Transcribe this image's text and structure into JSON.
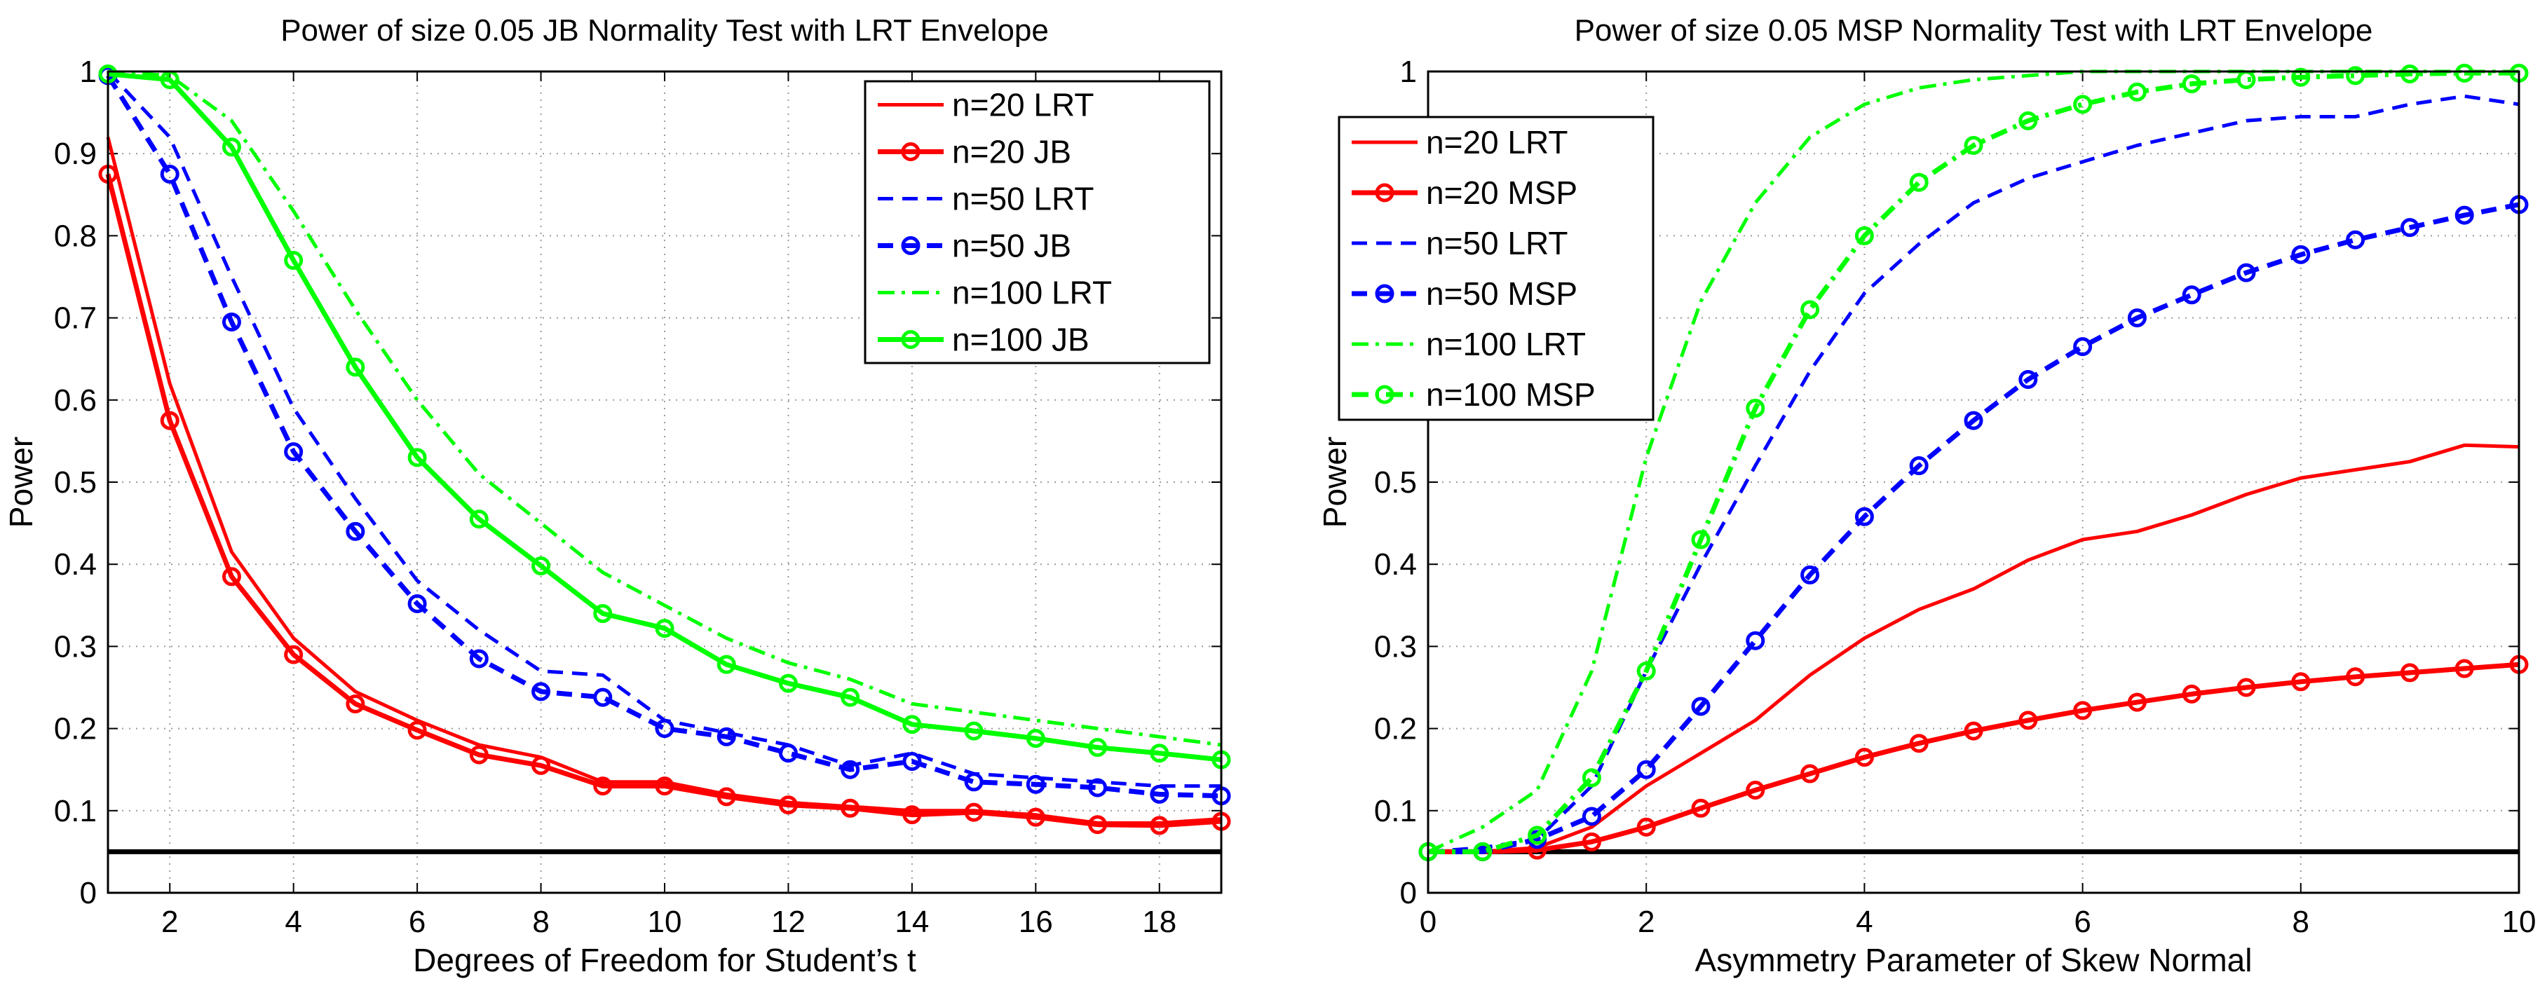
{
  "chart_data": [
    {
      "type": "line",
      "title": "Power of size 0.05 JB Normality Test with LRT Envelope",
      "xlabel": "Degrees of Freedom for Student’s t",
      "ylabel": "Power",
      "xlim": [
        1,
        19
      ],
      "ylim": [
        0,
        1
      ],
      "xticks": [
        2,
        4,
        6,
        8,
        10,
        12,
        14,
        16,
        18
      ],
      "yticks": [
        0,
        0.1,
        0.2,
        0.3,
        0.4,
        0.5,
        0.6,
        0.7,
        0.8,
        0.9,
        1
      ],
      "ytick_labels": [
        "0",
        "0.1",
        "0.2",
        "0.3",
        "0.4",
        "0.5",
        "0.6",
        "0.7",
        "0.8",
        "0.9",
        "1"
      ],
      "grid": true,
      "legend_position": "top-right",
      "x": [
        1,
        2,
        3,
        4,
        5,
        6,
        7,
        8,
        9,
        10,
        11,
        12,
        13,
        14,
        15,
        16,
        17,
        18,
        19
      ],
      "reference_line": 0.05,
      "series": [
        {
          "name": "n=20 LRT",
          "color": "#ff0000",
          "style": "solid",
          "marker": "none",
          "values": [
            0.92,
            0.62,
            0.415,
            0.31,
            0.245,
            0.21,
            0.18,
            0.165,
            0.135,
            0.135,
            0.12,
            0.11,
            0.105,
            0.1,
            0.1,
            0.095,
            0.085,
            0.085,
            0.09
          ]
        },
        {
          "name": "n=20 JB",
          "color": "#ff0000",
          "style": "solid",
          "marker": "circle",
          "values": [
            0.875,
            0.575,
            0.385,
            0.29,
            0.23,
            0.198,
            0.168,
            0.155,
            0.13,
            0.13,
            0.117,
            0.107,
            0.103,
            0.095,
            0.098,
            0.092,
            0.083,
            0.082,
            0.087
          ]
        },
        {
          "name": "n=50 LRT",
          "color": "#0000ff",
          "style": "dashed",
          "marker": "none",
          "values": [
            1.0,
            0.92,
            0.75,
            0.59,
            0.48,
            0.38,
            0.32,
            0.27,
            0.265,
            0.21,
            0.195,
            0.18,
            0.155,
            0.17,
            0.145,
            0.14,
            0.135,
            0.13,
            0.13
          ]
        },
        {
          "name": "n=50 JB",
          "color": "#0000ff",
          "style": "dashed",
          "marker": "circle",
          "values": [
            0.995,
            0.875,
            0.695,
            0.537,
            0.44,
            0.352,
            0.285,
            0.245,
            0.238,
            0.2,
            0.19,
            0.17,
            0.15,
            0.16,
            0.135,
            0.132,
            0.128,
            0.12,
            0.118
          ]
        },
        {
          "name": "n=100 LRT",
          "color": "#00ff00",
          "style": "dashdot",
          "marker": "none",
          "values": [
            1.0,
            0.995,
            0.94,
            0.83,
            0.71,
            0.6,
            0.51,
            0.45,
            0.39,
            0.35,
            0.31,
            0.28,
            0.26,
            0.23,
            0.22,
            0.21,
            0.2,
            0.19,
            0.18
          ]
        },
        {
          "name": "n=100 JB",
          "color": "#00ff00",
          "style": "solid",
          "marker": "circle",
          "values": [
            0.997,
            0.99,
            0.908,
            0.77,
            0.64,
            0.53,
            0.455,
            0.398,
            0.34,
            0.322,
            0.278,
            0.255,
            0.238,
            0.205,
            0.197,
            0.188,
            0.177,
            0.17,
            0.162
          ]
        }
      ]
    },
    {
      "type": "line",
      "title": "Power of size 0.05 MSP Normality Test with LRT Envelope",
      "xlabel": "Asymmetry Parameter of Skew Normal",
      "ylabel": "Power",
      "xlim": [
        0,
        10
      ],
      "ylim": [
        0,
        1
      ],
      "xticks": [
        0,
        2,
        4,
        6,
        8,
        10
      ],
      "yticks": [
        0,
        0.1,
        0.2,
        0.3,
        0.4,
        0.5,
        1
      ],
      "ytick_labels": [
        "0",
        "0.1",
        "0.2",
        "0.3",
        "0.4",
        "0.5",
        "1"
      ],
      "gridlines_y": [
        0.1,
        0.2,
        0.3,
        0.4,
        0.5,
        0.6,
        0.7,
        0.8,
        0.9,
        1
      ],
      "grid": true,
      "legend_position": "top-left",
      "x": [
        0,
        0.5,
        1,
        1.5,
        2,
        2.5,
        3,
        3.5,
        4,
        4.5,
        5,
        5.5,
        6,
        6.5,
        7,
        7.5,
        8,
        8.5,
        9,
        9.5,
        10
      ],
      "reference_line": 0.05,
      "series": [
        {
          "name": "n=20 LRT",
          "color": "#ff0000",
          "style": "solid",
          "marker": "none",
          "values": [
            0.05,
            0.05,
            0.055,
            0.08,
            0.13,
            0.17,
            0.21,
            0.265,
            0.31,
            0.345,
            0.37,
            0.405,
            0.43,
            0.44,
            0.46,
            0.485,
            0.505,
            0.515,
            0.525,
            0.545,
            0.543
          ]
        },
        {
          "name": "n=20 MSP",
          "color": "#ff0000",
          "style": "solid",
          "marker": "circle",
          "values": [
            0.05,
            0.05,
            0.052,
            0.062,
            0.08,
            0.103,
            0.125,
            0.145,
            0.165,
            0.182,
            0.197,
            0.21,
            0.222,
            0.232,
            0.242,
            0.25,
            0.257,
            0.263,
            0.268,
            0.273,
            0.278
          ]
        },
        {
          "name": "n=50 LRT",
          "color": "#0000ff",
          "style": "dashed",
          "marker": "none",
          "values": [
            0.05,
            0.055,
            0.065,
            0.13,
            0.27,
            0.4,
            0.52,
            0.635,
            0.73,
            0.79,
            0.84,
            0.87,
            0.89,
            0.91,
            0.925,
            0.94,
            0.945,
            0.945,
            0.96,
            0.97,
            0.96
          ]
        },
        {
          "name": "n=50 MSP",
          "color": "#0000ff",
          "style": "dashed",
          "marker": "circle",
          "values": [
            0.05,
            0.05,
            0.065,
            0.093,
            0.15,
            0.227,
            0.307,
            0.387,
            0.458,
            0.52,
            0.575,
            0.625,
            0.665,
            0.7,
            0.728,
            0.755,
            0.777,
            0.795,
            0.81,
            0.825,
            0.838
          ]
        },
        {
          "name": "n=100 LRT",
          "color": "#00ff00",
          "style": "dashdot",
          "marker": "none",
          "values": [
            0.05,
            0.08,
            0.125,
            0.27,
            0.53,
            0.72,
            0.84,
            0.92,
            0.96,
            0.98,
            0.99,
            0.995,
            1.0,
            1.0,
            1.0,
            1.0,
            1.0,
            1.0,
            1.0,
            1.0,
            1.0
          ]
        },
        {
          "name": "n=100 MSP",
          "color": "#00ff00",
          "style": "dashdot",
          "marker": "circle",
          "values": [
            0.05,
            0.05,
            0.07,
            0.14,
            0.27,
            0.43,
            0.59,
            0.71,
            0.8,
            0.865,
            0.91,
            0.94,
            0.96,
            0.975,
            0.985,
            0.99,
            0.993,
            0.995,
            0.997,
            0.998,
            0.998
          ]
        }
      ]
    }
  ]
}
